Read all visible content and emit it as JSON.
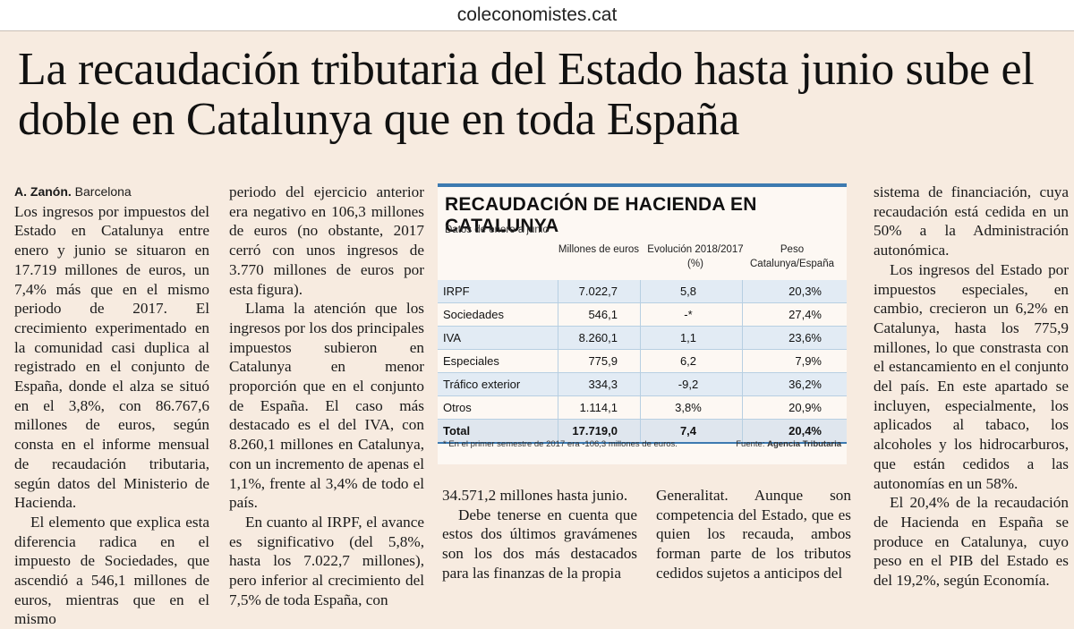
{
  "site": "coleconomistes.cat",
  "headline": "La recaudación tributaria del Estado hasta junio sube el doble en Catalunya que en toda España",
  "byline": {
    "author": "A. Zanón.",
    "place": "Barcelona"
  },
  "columns": {
    "col1": [
      "Los ingresos por impuestos del Estado en Catalunya entre enero y junio se situaron en 17.719 millones de euros, un 7,4% más que en el mismo periodo de 2017. El crecimiento experimentado en la comunidad casi duplica al registrado en el conjunto de España, donde el alza se situó en el 3,8%, con 86.767,6 millones de euros, según consta en el informe mensual de recaudación tributaria, según datos del Ministerio de Hacienda.",
      "El elemento que explica esta diferencia radica en el impuesto de Sociedades, que ascendió a 546,1 millones de euros, mientras que en el mismo"
    ],
    "col2": [
      "periodo del ejercicio anterior era negativo en 106,3 millones de euros (no obstante, 2017 cerró con unos ingresos de 3.770 millones de euros por esta figura).",
      "Llama la atención que los ingresos por los dos principales impuestos subieron en Catalunya en menor proporción que en el conjunto de España. El caso más destacado es el del IVA, con 8.260,1 millones en Catalunya, con un incremento de apenas el 1,1%, frente al 3,4% de todo el país.",
      "En cuanto al IRPF, el avance es significativo (del 5,8%, hasta los 7.022,7 millones), pero inferior al crecimiento del 7,5% de toda España, con"
    ],
    "col3": [
      "34.571,2 millones hasta junio.",
      "Debe tenerse en cuenta que estos dos últimos gravámenes son los dos más destacados para las finanzas de la propia"
    ],
    "col4": [
      "Generalitat. Aunque son competencia del Estado, que es quien los recauda, ambos forman parte de los tributos cedidos sujetos a anticipos del"
    ],
    "col5": [
      "sistema de financiación, cuya recaudación está cedida en un 50% a la Administración autonómica.",
      "Los ingresos del Estado por impuestos especiales, en cambio, crecieron un 6,2% en Catalunya, hasta los 775,9 millones, lo que constrasta con el estancamiento en el conjunto del país. En este apartado se incluyen, especialmente, los aplicados al tabaco, los alcoholes y los hidrocarburos, que están cedidos a las autonomías en un 58%.",
      "El 20,4% de la recaudación de Hacienda en España se produce en Catalunya, cuyo peso en el PIB del Estado es del 19,2%, según Economía."
    ]
  },
  "table": {
    "title": "RECAUDACIÓN DE HACIENDA EN CATALUNYA",
    "subtitle": "Datos de enero a junio",
    "headers": {
      "millones": "Millones de euros",
      "evolucion": "Evolución 2018/2017 (%)",
      "peso": "Peso Catalunya/España"
    },
    "rows": [
      {
        "name": "IRPF",
        "millones": "7.022,7",
        "evolucion": "5,8",
        "peso": "20,3%"
      },
      {
        "name": "Sociedades",
        "millones": "546,1",
        "evolucion": "-*",
        "peso": "27,4%"
      },
      {
        "name": "IVA",
        "millones": "8.260,1",
        "evolucion": "1,1",
        "peso": "23,6%"
      },
      {
        "name": "Especiales",
        "millones": "775,9",
        "evolucion": "6,2",
        "peso": "7,9%"
      },
      {
        "name": "Tráfico exterior",
        "millones": "334,3",
        "evolucion": "-9,2",
        "peso": "36,2%"
      },
      {
        "name": "Otros",
        "millones": "1.114,1",
        "evolucion": "3,8%",
        "peso": "20,9%"
      },
      {
        "name": "Total",
        "millones": "17.719,0",
        "evolucion": "7,4",
        "peso": "20,4%"
      }
    ],
    "footnote": "* En el primer semestre de 2017 era -106,3 millones de euros.",
    "source_label": "Fuente:",
    "source_name": "Agencia Tributaria"
  },
  "colors": {
    "accent": "#3d7ab0",
    "paper": "#f7ebe0",
    "row_alt": "#e2ebf4"
  }
}
